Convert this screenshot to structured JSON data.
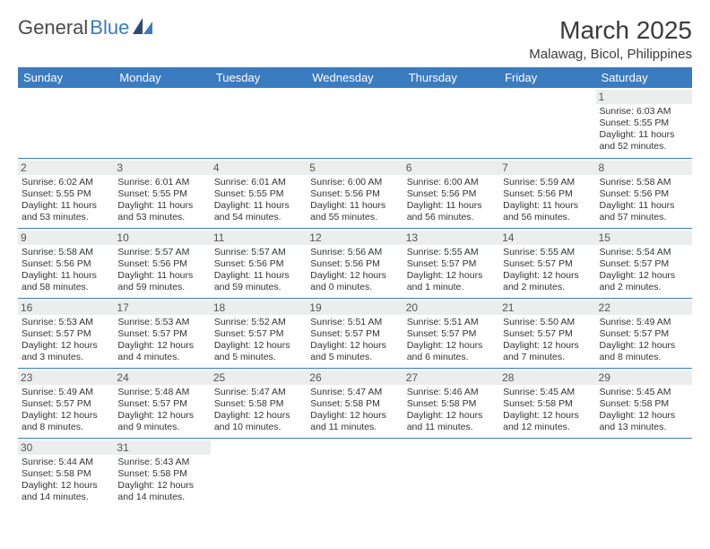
{
  "brand": {
    "part1": "General",
    "part2": "Blue",
    "color_text": "#4a4a4a",
    "color_blue": "#3b7bbf"
  },
  "title": "March 2025",
  "location": "Malawag, Bicol, Philippines",
  "header_bg": "#3b7bbf",
  "header_fg": "#ffffff",
  "daynum_bg": "#eceded",
  "border_color": "#3b7bbf",
  "weekdays": [
    "Sunday",
    "Monday",
    "Tuesday",
    "Wednesday",
    "Thursday",
    "Friday",
    "Saturday"
  ],
  "weeks": [
    [
      null,
      null,
      null,
      null,
      null,
      null,
      {
        "n": "1",
        "sunrise": "6:03 AM",
        "sunset": "5:55 PM",
        "daylight": "11 hours and 52 minutes."
      }
    ],
    [
      {
        "n": "2",
        "sunrise": "6:02 AM",
        "sunset": "5:55 PM",
        "daylight": "11 hours and 53 minutes."
      },
      {
        "n": "3",
        "sunrise": "6:01 AM",
        "sunset": "5:55 PM",
        "daylight": "11 hours and 53 minutes."
      },
      {
        "n": "4",
        "sunrise": "6:01 AM",
        "sunset": "5:55 PM",
        "daylight": "11 hours and 54 minutes."
      },
      {
        "n": "5",
        "sunrise": "6:00 AM",
        "sunset": "5:56 PM",
        "daylight": "11 hours and 55 minutes."
      },
      {
        "n": "6",
        "sunrise": "6:00 AM",
        "sunset": "5:56 PM",
        "daylight": "11 hours and 56 minutes."
      },
      {
        "n": "7",
        "sunrise": "5:59 AM",
        "sunset": "5:56 PM",
        "daylight": "11 hours and 56 minutes."
      },
      {
        "n": "8",
        "sunrise": "5:58 AM",
        "sunset": "5:56 PM",
        "daylight": "11 hours and 57 minutes."
      }
    ],
    [
      {
        "n": "9",
        "sunrise": "5:58 AM",
        "sunset": "5:56 PM",
        "daylight": "11 hours and 58 minutes."
      },
      {
        "n": "10",
        "sunrise": "5:57 AM",
        "sunset": "5:56 PM",
        "daylight": "11 hours and 59 minutes."
      },
      {
        "n": "11",
        "sunrise": "5:57 AM",
        "sunset": "5:56 PM",
        "daylight": "11 hours and 59 minutes."
      },
      {
        "n": "12",
        "sunrise": "5:56 AM",
        "sunset": "5:56 PM",
        "daylight": "12 hours and 0 minutes."
      },
      {
        "n": "13",
        "sunrise": "5:55 AM",
        "sunset": "5:57 PM",
        "daylight": "12 hours and 1 minute."
      },
      {
        "n": "14",
        "sunrise": "5:55 AM",
        "sunset": "5:57 PM",
        "daylight": "12 hours and 2 minutes."
      },
      {
        "n": "15",
        "sunrise": "5:54 AM",
        "sunset": "5:57 PM",
        "daylight": "12 hours and 2 minutes."
      }
    ],
    [
      {
        "n": "16",
        "sunrise": "5:53 AM",
        "sunset": "5:57 PM",
        "daylight": "12 hours and 3 minutes."
      },
      {
        "n": "17",
        "sunrise": "5:53 AM",
        "sunset": "5:57 PM",
        "daylight": "12 hours and 4 minutes."
      },
      {
        "n": "18",
        "sunrise": "5:52 AM",
        "sunset": "5:57 PM",
        "daylight": "12 hours and 5 minutes."
      },
      {
        "n": "19",
        "sunrise": "5:51 AM",
        "sunset": "5:57 PM",
        "daylight": "12 hours and 5 minutes."
      },
      {
        "n": "20",
        "sunrise": "5:51 AM",
        "sunset": "5:57 PM",
        "daylight": "12 hours and 6 minutes."
      },
      {
        "n": "21",
        "sunrise": "5:50 AM",
        "sunset": "5:57 PM",
        "daylight": "12 hours and 7 minutes."
      },
      {
        "n": "22",
        "sunrise": "5:49 AM",
        "sunset": "5:57 PM",
        "daylight": "12 hours and 8 minutes."
      }
    ],
    [
      {
        "n": "23",
        "sunrise": "5:49 AM",
        "sunset": "5:57 PM",
        "daylight": "12 hours and 8 minutes."
      },
      {
        "n": "24",
        "sunrise": "5:48 AM",
        "sunset": "5:57 PM",
        "daylight": "12 hours and 9 minutes."
      },
      {
        "n": "25",
        "sunrise": "5:47 AM",
        "sunset": "5:58 PM",
        "daylight": "12 hours and 10 minutes."
      },
      {
        "n": "26",
        "sunrise": "5:47 AM",
        "sunset": "5:58 PM",
        "daylight": "12 hours and 11 minutes."
      },
      {
        "n": "27",
        "sunrise": "5:46 AM",
        "sunset": "5:58 PM",
        "daylight": "12 hours and 11 minutes."
      },
      {
        "n": "28",
        "sunrise": "5:45 AM",
        "sunset": "5:58 PM",
        "daylight": "12 hours and 12 minutes."
      },
      {
        "n": "29",
        "sunrise": "5:45 AM",
        "sunset": "5:58 PM",
        "daylight": "12 hours and 13 minutes."
      }
    ],
    [
      {
        "n": "30",
        "sunrise": "5:44 AM",
        "sunset": "5:58 PM",
        "daylight": "12 hours and 14 minutes."
      },
      {
        "n": "31",
        "sunrise": "5:43 AM",
        "sunset": "5:58 PM",
        "daylight": "12 hours and 14 minutes."
      },
      null,
      null,
      null,
      null,
      null
    ]
  ],
  "labels": {
    "sunrise": "Sunrise:",
    "sunset": "Sunset:",
    "daylight": "Daylight:"
  }
}
